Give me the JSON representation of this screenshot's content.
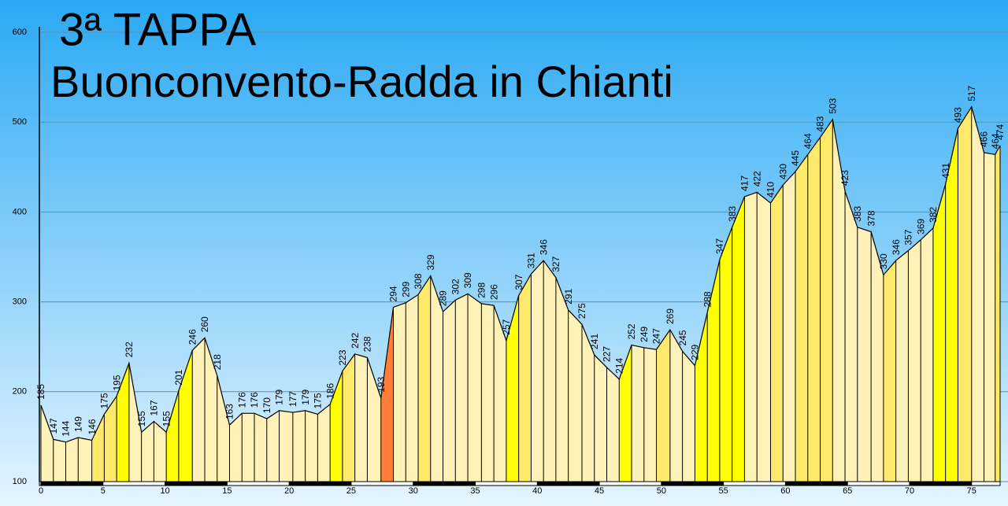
{
  "chart_data": {
    "type": "area",
    "title": "3ª TAPPA",
    "subtitle": "Buonconvento-Radda in Chianti",
    "x": [
      0,
      1.0,
      2.0,
      3.0,
      4.1,
      5.1,
      6.1,
      7.1,
      8.1,
      9.1,
      10.1,
      11.1,
      12.2,
      13.2,
      14.2,
      15.2,
      16.2,
      17.2,
      18.2,
      19.2,
      20.3,
      21.3,
      22.3,
      23.3,
      24.3,
      25.3,
      26.3,
      27.4,
      28.4,
      29.4,
      30.4,
      31.4,
      32.4,
      33.4,
      34.4,
      35.5,
      36.5,
      37.5,
      38.5,
      39.5,
      40.5,
      41.5,
      42.5,
      43.6,
      44.6,
      45.6,
      46.6,
      47.6,
      48.6,
      49.6,
      50.7,
      51.7,
      52.7,
      53.7,
      54.7,
      55.7,
      56.7,
      57.7,
      58.8,
      59.8,
      60.8,
      61.8,
      62.8,
      63.8,
      64.8,
      65.8,
      66.9,
      67.9,
      68.9,
      69.9,
      70.9,
      71.9,
      72.9,
      73.9,
      75.0,
      76.0,
      76.9,
      77.3
    ],
    "values": [
      185,
      147,
      144,
      149,
      146,
      175,
      195,
      232,
      155,
      167,
      155,
      201,
      246,
      260,
      218,
      163,
      176,
      176,
      170,
      179,
      177,
      179,
      175,
      186,
      223,
      242,
      238,
      193,
      294,
      299,
      308,
      329,
      289,
      302,
      309,
      298,
      296,
      257,
      307,
      331,
      346,
      327,
      291,
      275,
      241,
      227,
      214,
      252,
      249,
      247,
      269,
      245,
      229,
      288,
      347,
      383,
      417,
      422,
      410,
      430,
      445,
      464,
      483,
      503,
      423,
      383,
      378,
      330,
      346,
      357,
      369,
      382,
      431,
      493,
      517,
      466,
      464,
      474
    ],
    "xlim": [
      0,
      77.3
    ],
    "xticks": [
      0,
      5,
      10,
      15,
      20,
      25,
      30,
      35,
      40,
      45,
      50,
      55,
      60,
      65,
      70,
      75
    ],
    "ylim": [
      100,
      600
    ],
    "yticks": [
      100,
      200,
      300,
      400,
      500,
      600
    ],
    "grid": true
  }
}
